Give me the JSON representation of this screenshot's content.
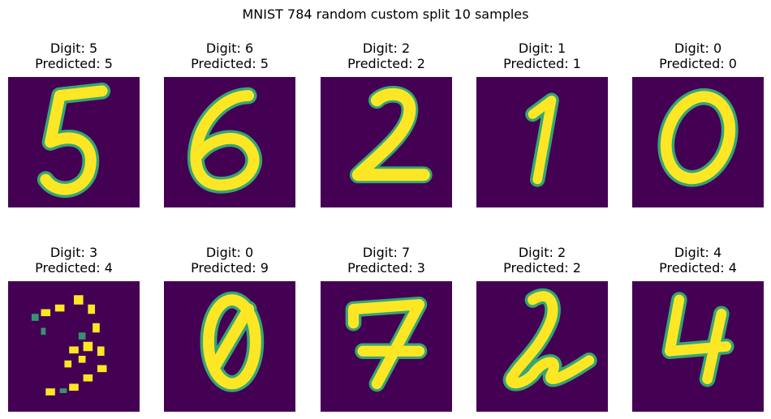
{
  "figure": {
    "title": "MNIST 784 random custom split 10 samples"
  },
  "colors": {
    "background": "#440154",
    "stroke_full": "#fde725",
    "stroke_mid": "#35b779",
    "stroke_low": "#31688e"
  },
  "panels": [
    {
      "digit_label": "Digit: 5",
      "pred_label": "Predicted: 5",
      "digit": 5,
      "predicted": 5
    },
    {
      "digit_label": "Digit: 6",
      "pred_label": "Predicted: 5",
      "digit": 6,
      "predicted": 5
    },
    {
      "digit_label": "Digit: 2",
      "pred_label": "Predicted: 2",
      "digit": 2,
      "predicted": 2
    },
    {
      "digit_label": "Digit: 1",
      "pred_label": "Predicted: 1",
      "digit": 1,
      "predicted": 1
    },
    {
      "digit_label": "Digit: 0",
      "pred_label": "Predicted: 0",
      "digit": 0,
      "predicted": 0
    },
    {
      "digit_label": "Digit: 3",
      "pred_label": "Predicted: 4",
      "digit": 3,
      "predicted": 4
    },
    {
      "digit_label": "Digit: 0",
      "pred_label": "Predicted: 9",
      "digit": 0,
      "predicted": 9
    },
    {
      "digit_label": "Digit: 7",
      "pred_label": "Predicted: 3",
      "digit": 7,
      "predicted": 3
    },
    {
      "digit_label": "Digit: 2",
      "pred_label": "Predicted: 2",
      "digit": 2,
      "predicted": 2
    },
    {
      "digit_label": "Digit: 4",
      "pred_label": "Predicted: 4",
      "digit": 4,
      "predicted": 4
    }
  ],
  "chart_data": {
    "type": "image-grid",
    "title": "MNIST 784 random custom split 10 samples",
    "rows": 2,
    "cols": 5,
    "colormap": "viridis",
    "digits": [
      5,
      6,
      2,
      1,
      0,
      3,
      0,
      7,
      2,
      4
    ],
    "predicted": [
      5,
      5,
      2,
      1,
      0,
      4,
      9,
      3,
      2,
      4
    ]
  }
}
